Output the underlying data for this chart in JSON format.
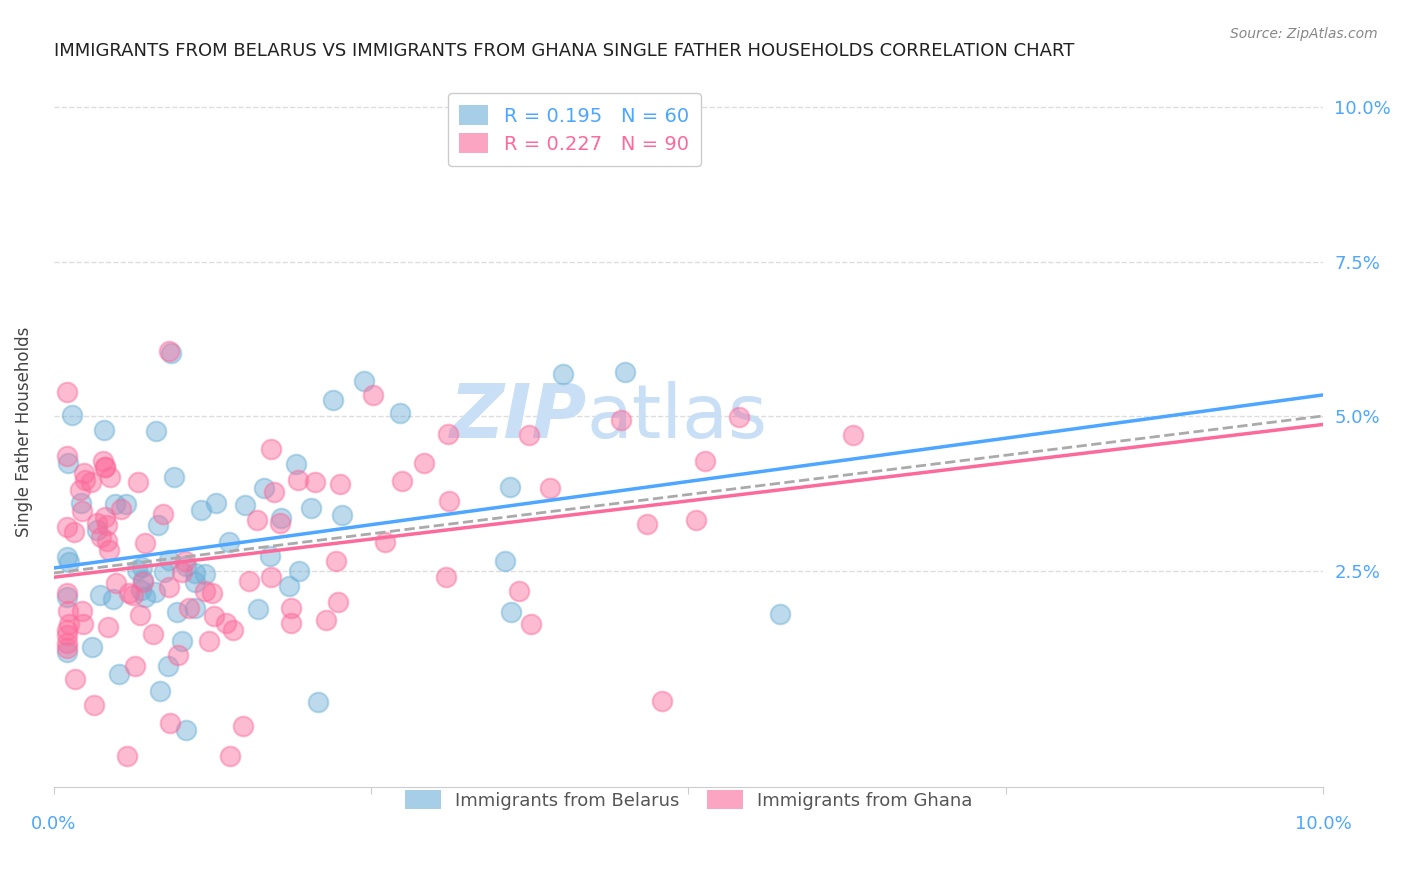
{
  "title": "IMMIGRANTS FROM BELARUS VS IMMIGRANTS FROM GHANA SINGLE FATHER HOUSEHOLDS CORRELATION CHART",
  "source": "Source: ZipAtlas.com",
  "ylabel": "Single Father Households",
  "y_tick_labels": [
    "2.5%",
    "5.0%",
    "7.5%",
    "10.0%"
  ],
  "y_tick_values": [
    0.025,
    0.05,
    0.075,
    0.1
  ],
  "x_tick_values": [
    0.0,
    0.025,
    0.05,
    0.075,
    0.1
  ],
  "xlim": [
    0.0,
    0.1
  ],
  "ylim": [
    -0.01,
    0.105
  ],
  "R_belarus": 0.195,
  "N_belarus": 60,
  "R_ghana": 0.227,
  "N_ghana": 90,
  "color_belarus": "#6baed6",
  "color_ghana": "#fb6a9a",
  "color_title": "#222222",
  "color_source": "#888888",
  "color_axis_labels": "#4da6ff",
  "color_grid": "#dddddd",
  "color_trendline_belarus": "#4da6ff",
  "color_trendline_ghana": "#fb6a9a",
  "color_trendline_dashed": "#aaaaaa",
  "watermark_zip": "ZIP",
  "watermark_atlas": "atlas",
  "watermark_color": "#c8dff5",
  "background_color": "#ffffff"
}
